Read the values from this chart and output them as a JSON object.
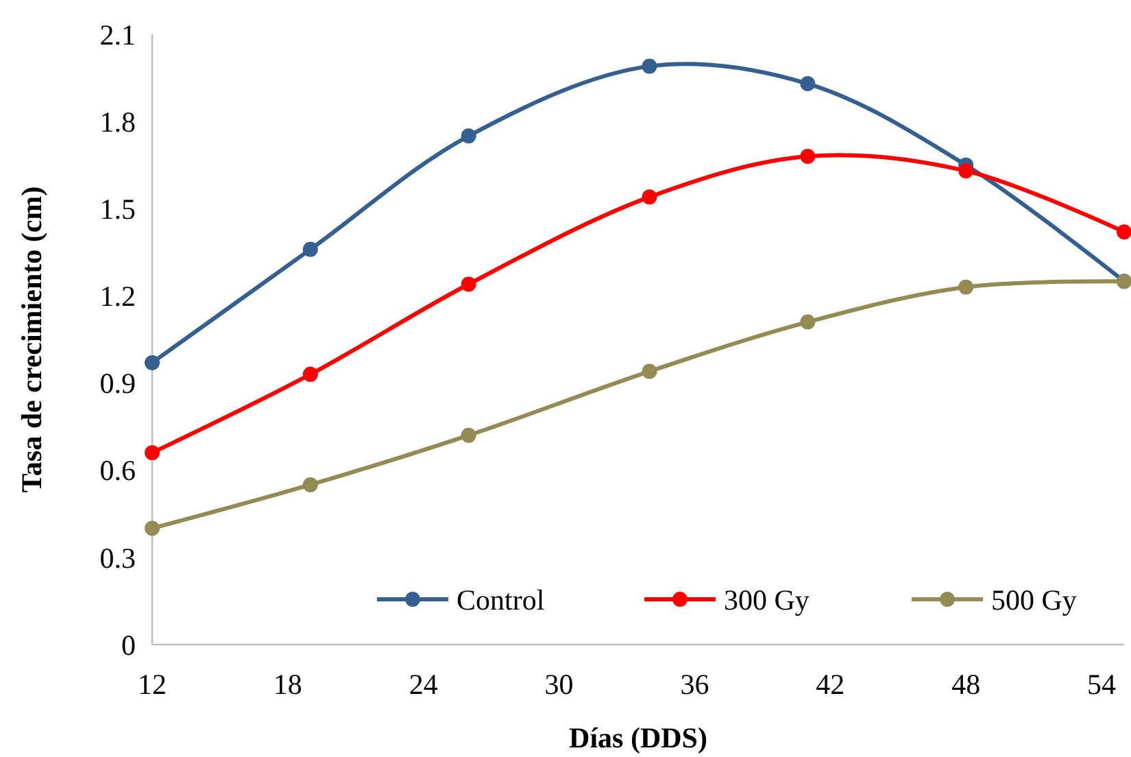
{
  "chart_data": {
    "type": "line",
    "xlabel": "Días (DDS)",
    "ylabel": "Tasa de crecimiento (cm)",
    "x": [
      12,
      19,
      26,
      34,
      41,
      48,
      55
    ],
    "series": [
      {
        "name": "Control",
        "color": "#365f91",
        "values": [
          0.97,
          1.36,
          1.75,
          1.99,
          1.93,
          1.65,
          1.25
        ]
      },
      {
        "name": "300 Gy",
        "color": "#ff0000",
        "values": [
          0.66,
          0.93,
          1.24,
          1.54,
          1.68,
          1.63,
          1.42
        ]
      },
      {
        "name": "500 Gy",
        "color": "#948a54",
        "values": [
          0.4,
          0.55,
          0.72,
          0.94,
          1.11,
          1.23,
          1.25
        ]
      }
    ],
    "xlim": [
      12,
      55
    ],
    "xticks": [
      12,
      18,
      24,
      30,
      36,
      42,
      48,
      54
    ],
    "ylim": [
      0,
      2.1
    ],
    "yticks": [
      0,
      0.3,
      0.6,
      0.9,
      1.2,
      1.5,
      1.8,
      2.1
    ],
    "grid": false,
    "legend": "bottom",
    "marker": "circle",
    "line_style": "solid"
  }
}
